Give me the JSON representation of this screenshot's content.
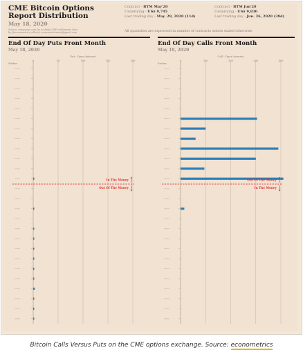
{
  "header": {
    "title": "CME Bitcoin Options Report Distribution",
    "date": "May 18, 2020",
    "note_line1": "Source: cmegroup.com; ba nr daily CME settlements data",
    "note_line2": "by @econometrics_official; econometricsmail@gmail.com",
    "contract_left": {
      "contract_label": "Contract - ",
      "contract": "BTM May'20",
      "underlying_label": "Underlying - ",
      "underlying": "US$ 9,745",
      "last_label": "Last trading day - ",
      "last": "May. 29, 2020 (11d)"
    },
    "contract_right": {
      "contract_label": "Contract - ",
      "contract": "BTM Jun'20",
      "underlying_label": "Underlying - ",
      "underlying": "US$ 9,830",
      "last_label": "Last trading day - ",
      "last": "Jun. 26, 2020 (39d)"
    },
    "all_quantities": "All quantities are expressed in number of contracts unless stated otherwise."
  },
  "sections": {
    "puts_title": "End Of Day Puts Front Month",
    "puts_date": "May 18, 2020",
    "calls_title": "End Of Day Calls Front Month",
    "calls_date": "May 18, 2020"
  },
  "chart_data": [
    {
      "type": "bar",
      "orientation": "horizontal",
      "title": "End Of Day Puts Front Month",
      "subtitle": "May 18, 2020",
      "xlabel": "Put - Open Interest",
      "ylabel": "Strikes",
      "xlim": [
        0,
        200
      ],
      "xticks": [
        0,
        50,
        100,
        150,
        200
      ],
      "grid": true,
      "bar_color": "#2c7fb8",
      "threshold_color": "#e03030",
      "strike_count": 26,
      "money_line_after_index": 11,
      "labels_above": "In The Money",
      "labels_below": "Out Of The Money",
      "values": [
        0,
        0,
        0,
        0,
        0,
        0,
        0,
        0,
        0,
        0,
        0,
        1,
        0,
        0,
        1,
        0,
        1,
        1,
        1,
        2,
        1,
        1,
        3,
        1,
        1,
        1
      ]
    },
    {
      "type": "bar",
      "orientation": "horizontal",
      "title": "End Of Day Calls Front Month",
      "subtitle": "May 18, 2020",
      "xlabel": "Call - Open Interest",
      "ylabel": "Strikes",
      "xlim": [
        0,
        400
      ],
      "xticks": [
        0,
        100,
        200,
        300,
        400
      ],
      "grid": true,
      "bar_color": "#2c7fb8",
      "threshold_color": "#e03030",
      "strike_count": 26,
      "money_line_after_index": 11,
      "labels_above": "Out Of The Money",
      "labels_below": "In The Money",
      "values": [
        0,
        0,
        0,
        0,
        0,
        305,
        100,
        60,
        390,
        300,
        95,
        410,
        0,
        0,
        15,
        0,
        0,
        0,
        0,
        0,
        0,
        0,
        0,
        0,
        0,
        0
      ]
    }
  ],
  "caption": {
    "text": "Bitcoin Calls Versus Puts on the CME options exchange. Source: ",
    "link": "econometrics"
  }
}
